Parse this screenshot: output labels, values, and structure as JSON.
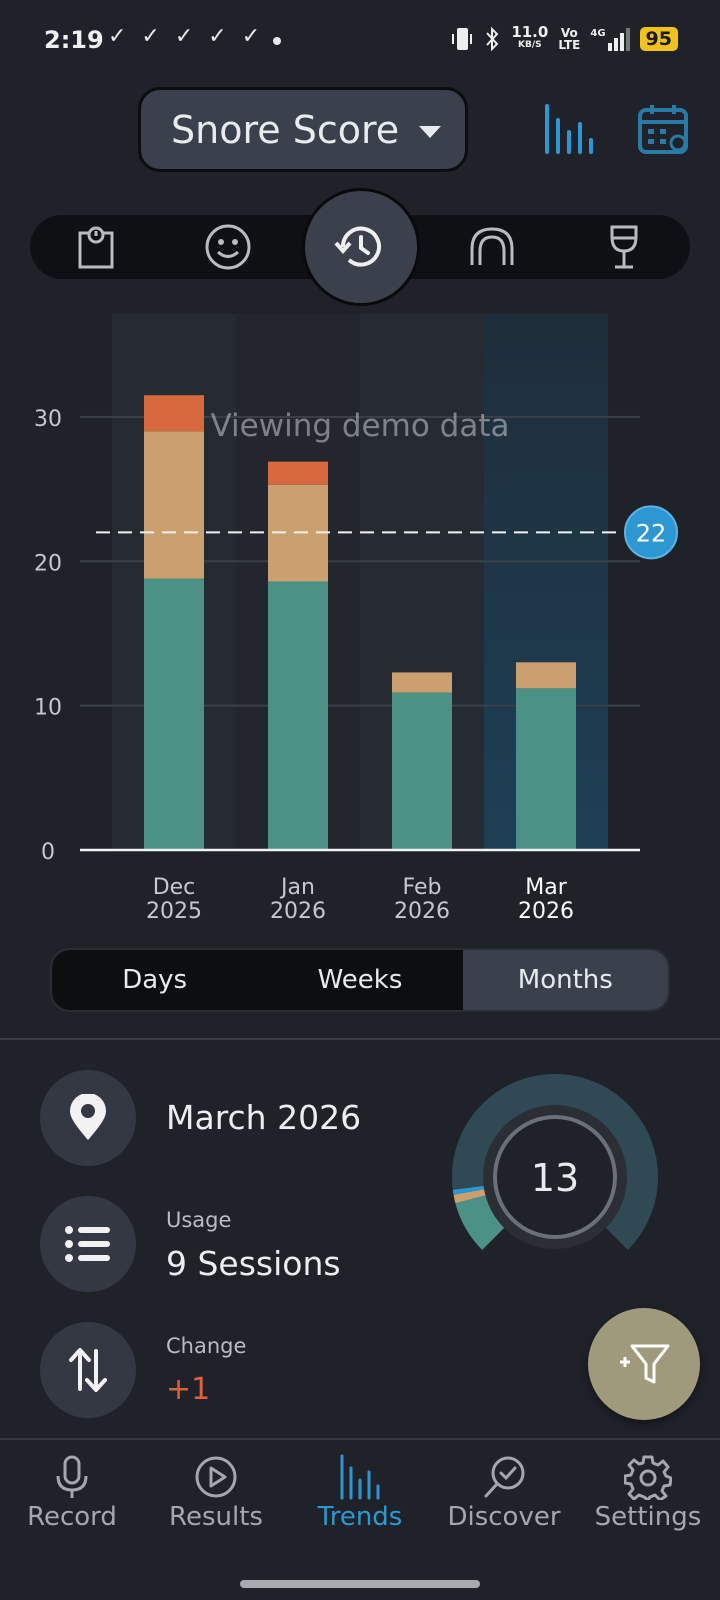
{
  "status_bar": {
    "time": "2:19",
    "check_icons": "✓ ✓ ✓ ✓ ✓",
    "net_speed": "11.0",
    "net_unit": "KB/S",
    "volte_top": "Vo",
    "volte_bottom": "LTE",
    "network": "4G",
    "battery": "95"
  },
  "header": {
    "metric_label": "Snore Score",
    "chart_icon": "bar-chart-icon",
    "calendar_icon": "calendar-icon"
  },
  "categories": {
    "items": [
      "bag-icon",
      "smiley-icon",
      "history-icon",
      "mouthguard-icon",
      "wine-glass-icon"
    ],
    "active": "History"
  },
  "chart_data": {
    "type": "bar",
    "stacked": true,
    "categories": [
      "Dec 2025",
      "Jan 2026",
      "Feb 2026",
      "Mar 2026"
    ],
    "category_lines": [
      [
        "Dec",
        "2025"
      ],
      [
        "Jan",
        "2026"
      ],
      [
        "Feb",
        "2026"
      ],
      [
        "Mar",
        "2026"
      ]
    ],
    "series": [
      {
        "values": [
          18.8,
          18.6,
          10.9,
          11.2
        ],
        "color": "#4c9186"
      },
      {
        "values": [
          10.2,
          6.7,
          1.4,
          1.8
        ],
        "color": "#c9a06e"
      },
      {
        "values": [
          2.5,
          1.6,
          0.0,
          0.0
        ],
        "color": "#d66a3e"
      }
    ],
    "ylim": [
      0,
      32
    ],
    "yticks": [
      0,
      10,
      20,
      30
    ],
    "reference_line": 22,
    "reference_label": "22",
    "highlighted_category": "Mar 2026",
    "watermark": "Viewing demo data",
    "grid": true
  },
  "period_toggle": {
    "options": [
      "Days",
      "Weeks",
      "Months"
    ],
    "selected": "Months"
  },
  "stats": {
    "period_label": "March 2026",
    "usage_caption": "Usage",
    "usage_value": "9 Sessions",
    "change_caption": "Change",
    "change_value": "+1",
    "change_color": "#e0623a"
  },
  "gauge": {
    "value": "13",
    "max": 100,
    "segments": [
      {
        "value": 11.2,
        "color": "#4c9186"
      },
      {
        "value": 1.8,
        "color": "#c9a06e"
      },
      {
        "value": 1.0,
        "color": "#2d97d3"
      }
    ],
    "track_color": "#2f4a55"
  },
  "bottom_nav": {
    "items": [
      {
        "label": "Record",
        "icon": "microphone-icon"
      },
      {
        "label": "Results",
        "icon": "play-circle-icon"
      },
      {
        "label": "Trends",
        "icon": "bar-chart-icon"
      },
      {
        "label": "Discover",
        "icon": "discover-icon"
      },
      {
        "label": "Settings",
        "icon": "gear-icon"
      }
    ],
    "active": "Trends"
  },
  "colors": {
    "accent": "#2d97d3",
    "background": "#1f2229",
    "fab": "#a09a7d"
  }
}
